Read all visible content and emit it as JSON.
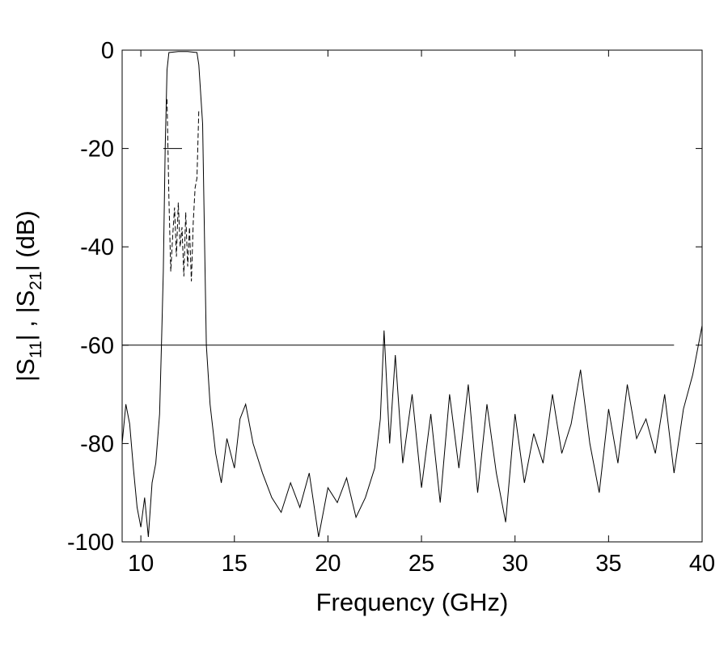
{
  "chart_data": {
    "type": "line",
    "xlabel": "Frequency (GHz)",
    "ylabel_parts": [
      "|S",
      "11",
      "| , |S",
      "21",
      "| (dB)"
    ],
    "xlim": [
      9,
      40
    ],
    "ylim": [
      -100,
      0
    ],
    "x_ticks": [
      10,
      15,
      20,
      25,
      30,
      35,
      40
    ],
    "y_ticks": [
      0,
      -20,
      -40,
      -60,
      -80,
      -100
    ],
    "grid": false,
    "reference_lines": [
      {
        "type": "horizontal",
        "y": -60,
        "x_from": 9,
        "x_to": 38.5
      },
      {
        "type": "horizontal",
        "y": -20,
        "x_from": 11.2,
        "x_to": 12.2
      }
    ],
    "series": [
      {
        "style": "solid",
        "points": [
          [
            9.0,
            -80
          ],
          [
            9.2,
            -72
          ],
          [
            9.4,
            -76
          ],
          [
            9.6,
            -85
          ],
          [
            9.8,
            -93
          ],
          [
            10.0,
            -97
          ],
          [
            10.2,
            -91
          ],
          [
            10.4,
            -99
          ],
          [
            10.6,
            -88
          ],
          [
            10.8,
            -84
          ],
          [
            11.0,
            -74
          ],
          [
            11.1,
            -60
          ],
          [
            11.2,
            -45
          ],
          [
            11.3,
            -20
          ],
          [
            11.4,
            -4
          ],
          [
            11.5,
            -0.5
          ],
          [
            12.0,
            -0.3
          ],
          [
            12.5,
            -0.3
          ],
          [
            13.0,
            -0.5
          ],
          [
            13.1,
            -3
          ],
          [
            13.3,
            -15
          ],
          [
            13.4,
            -38
          ],
          [
            13.5,
            -60
          ],
          [
            13.7,
            -72
          ],
          [
            14.0,
            -82
          ],
          [
            14.3,
            -88
          ],
          [
            14.6,
            -79
          ],
          [
            15.0,
            -85
          ],
          [
            15.3,
            -75
          ],
          [
            15.6,
            -72
          ],
          [
            16.0,
            -80
          ],
          [
            16.5,
            -86
          ],
          [
            17.0,
            -91
          ],
          [
            17.5,
            -94
          ],
          [
            18.0,
            -88
          ],
          [
            18.5,
            -93
          ],
          [
            19.0,
            -86
          ],
          [
            19.5,
            -99
          ],
          [
            20.0,
            -89
          ],
          [
            20.5,
            -92
          ],
          [
            21.0,
            -87
          ],
          [
            21.5,
            -95
          ],
          [
            22.0,
            -91
          ],
          [
            22.5,
            -85
          ],
          [
            22.8,
            -75
          ],
          [
            23.0,
            -57
          ],
          [
            23.3,
            -80
          ],
          [
            23.6,
            -62
          ],
          [
            24.0,
            -84
          ],
          [
            24.5,
            -70
          ],
          [
            25.0,
            -89
          ],
          [
            25.5,
            -74
          ],
          [
            26.0,
            -92
          ],
          [
            26.5,
            -70
          ],
          [
            27.0,
            -85
          ],
          [
            27.5,
            -68
          ],
          [
            28.0,
            -90
          ],
          [
            28.5,
            -72
          ],
          [
            29.0,
            -86
          ],
          [
            29.5,
            -96
          ],
          [
            30.0,
            -74
          ],
          [
            30.5,
            -88
          ],
          [
            31.0,
            -78
          ],
          [
            31.5,
            -84
          ],
          [
            32.0,
            -70
          ],
          [
            32.5,
            -82
          ],
          [
            33.0,
            -76
          ],
          [
            33.5,
            -65
          ],
          [
            34.0,
            -80
          ],
          [
            34.5,
            -90
          ],
          [
            35.0,
            -73
          ],
          [
            35.5,
            -84
          ],
          [
            36.0,
            -68
          ],
          [
            36.5,
            -79
          ],
          [
            37.0,
            -75
          ],
          [
            37.5,
            -82
          ],
          [
            38.0,
            -70
          ],
          [
            38.5,
            -86
          ],
          [
            39.0,
            -73
          ],
          [
            39.5,
            -66
          ],
          [
            40.0,
            -56
          ]
        ]
      },
      {
        "style": "dashed",
        "points": [
          [
            11.4,
            -10
          ],
          [
            11.5,
            -30
          ],
          [
            11.6,
            -45
          ],
          [
            11.7,
            -38
          ],
          [
            11.8,
            -32
          ],
          [
            11.9,
            -42
          ],
          [
            12.0,
            -31
          ],
          [
            12.1,
            -40
          ],
          [
            12.2,
            -36
          ],
          [
            12.3,
            -46
          ],
          [
            12.4,
            -33
          ],
          [
            12.5,
            -44
          ],
          [
            12.6,
            -36
          ],
          [
            12.7,
            -47
          ],
          [
            12.8,
            -35
          ],
          [
            12.9,
            -28
          ],
          [
            13.0,
            -26
          ],
          [
            13.1,
            -12
          ]
        ]
      }
    ]
  }
}
